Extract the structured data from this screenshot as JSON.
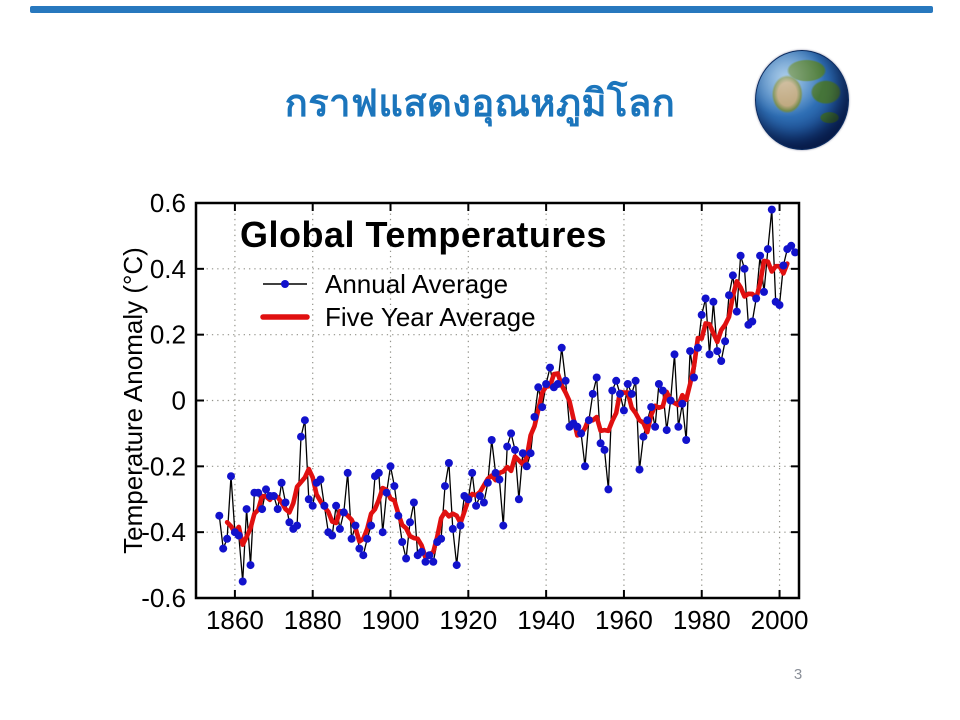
{
  "slide": {
    "title": "กราฟแสดงอุณหภูมิโลก",
    "title_color": "#1B75BC",
    "accent_color": "#2878BE",
    "page_number": "3"
  },
  "globe": {
    "icon": "earth-globe-icon"
  },
  "chart_data": {
    "type": "line",
    "title": "Global Temperatures",
    "xlabel": "",
    "ylabel": "Temperature Anomaly (°C)",
    "xlim": [
      1850,
      2005
    ],
    "ylim": [
      -0.6,
      0.6
    ],
    "xticks": [
      1860,
      1880,
      1900,
      1920,
      1940,
      1960,
      1980,
      2000
    ],
    "xtick_labels": [
      "1860",
      "1880",
      "1900",
      "1920",
      "1940",
      "1960",
      "1980",
      "2000"
    ],
    "yticks": [
      0.6,
      0.4,
      0.2,
      0,
      -0.2,
      -0.4,
      -0.6
    ],
    "ytick_labels": [
      "0.6",
      "0.4",
      "0.2",
      "0",
      "-0.2",
      "-0.4",
      "-0.6"
    ],
    "grid": "dotted",
    "grid_color": "#93938b",
    "frame_color": "#000000",
    "legend_position": "upper-left-inside",
    "legend": [
      {
        "label": "Annual Average",
        "line_color": "#000000",
        "marker_color": "#1212CC",
        "style": "thin-line-with-dot-markers"
      },
      {
        "label": "Five Year Average",
        "line_color": "#E01010",
        "style": "thick-smooth-line"
      }
    ],
    "series": [
      {
        "name": "Annual Average",
        "x_start_year": 1856,
        "x_step_years": 1,
        "values": [
          -0.35,
          -0.45,
          -0.42,
          -0.23,
          -0.4,
          -0.41,
          -0.55,
          -0.33,
          -0.5,
          -0.28,
          -0.28,
          -0.33,
          -0.27,
          -0.29,
          -0.29,
          -0.33,
          -0.25,
          -0.31,
          -0.37,
          -0.39,
          -0.38,
          -0.11,
          -0.06,
          -0.3,
          -0.32,
          -0.25,
          -0.24,
          -0.32,
          -0.4,
          -0.41,
          -0.32,
          -0.39,
          -0.34,
          -0.22,
          -0.42,
          -0.38,
          -0.45,
          -0.47,
          -0.42,
          -0.38,
          -0.23,
          -0.22,
          -0.4,
          -0.28,
          -0.2,
          -0.26,
          -0.35,
          -0.43,
          -0.48,
          -0.37,
          -0.31,
          -0.47,
          -0.46,
          -0.49,
          -0.47,
          -0.49,
          -0.43,
          -0.42,
          -0.26,
          -0.19,
          -0.39,
          -0.5,
          -0.38,
          -0.29,
          -0.3,
          -0.22,
          -0.32,
          -0.29,
          -0.31,
          -0.25,
          -0.12,
          -0.22,
          -0.24,
          -0.38,
          -0.14,
          -0.1,
          -0.15,
          -0.3,
          -0.16,
          -0.2,
          -0.16,
          -0.05,
          0.04,
          -0.02,
          0.05,
          0.1,
          0.04,
          0.05,
          0.16,
          0.06,
          -0.08,
          -0.07,
          -0.08,
          -0.1,
          -0.2,
          -0.06,
          0.02,
          0.07,
          -0.13,
          -0.15,
          -0.27,
          0.03,
          0.06,
          0.02,
          -0.03,
          0.05,
          0.02,
          0.06,
          -0.21,
          -0.11,
          -0.06,
          -0.02,
          -0.08,
          0.05,
          0.03,
          -0.09,
          0.0,
          0.14,
          -0.08,
          -0.01,
          -0.12,
          0.15,
          0.07,
          0.16,
          0.26,
          0.31,
          0.14,
          0.3,
          0.15,
          0.12,
          0.18,
          0.32,
          0.38,
          0.27,
          0.44,
          0.4,
          0.23,
          0.24,
          0.31,
          0.44,
          0.33,
          0.46,
          0.58,
          0.3,
          0.29,
          0.41,
          0.46,
          0.47,
          0.45
        ]
      },
      {
        "name": "Five Year Average",
        "derivation": "centered 5-year moving average of Annual Average",
        "color": "#E01010"
      }
    ]
  }
}
